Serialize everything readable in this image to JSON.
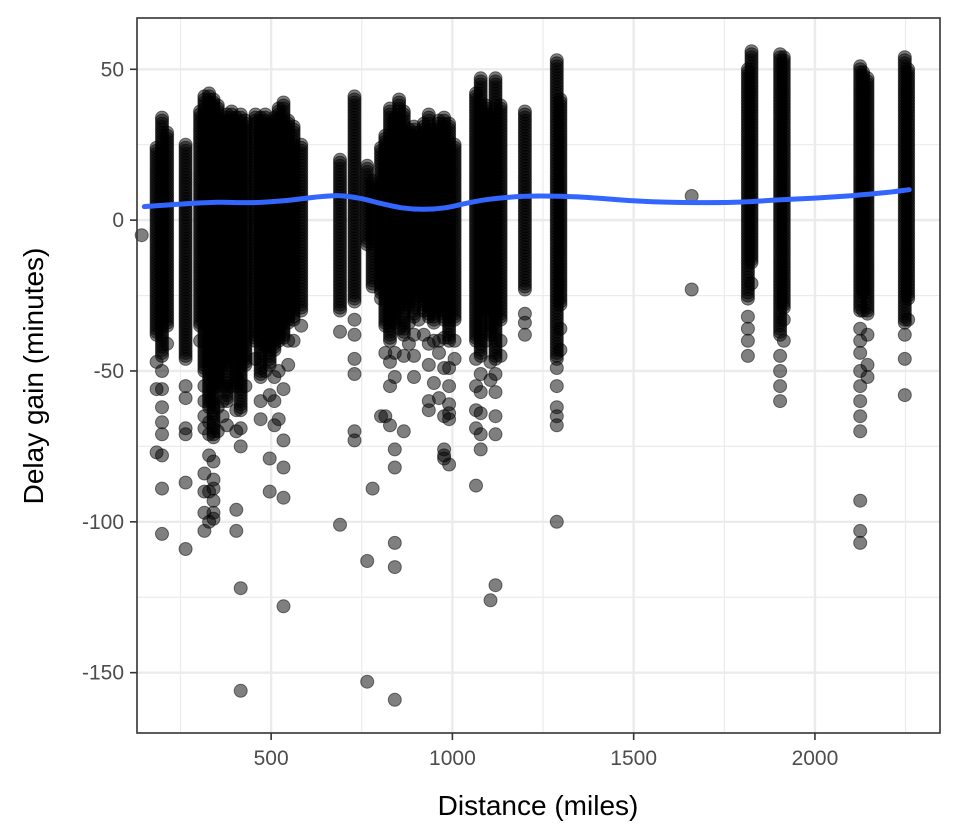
{
  "chart_data": {
    "type": "scatter",
    "title": "",
    "xlabel": "Distance (miles)",
    "ylabel": "Delay gain (minutes)",
    "xlim": [
      130,
      2345
    ],
    "ylim": [
      -170,
      67
    ],
    "x_ticks": [
      500,
      1000,
      1500,
      2000
    ],
    "y_ticks": [
      50,
      0,
      -50,
      -100,
      -150
    ],
    "x_tick_labels": [
      "500",
      "1000",
      "1500",
      "2000"
    ],
    "y_tick_labels": [
      "50",
      "0",
      "-50",
      "-100",
      "-150"
    ],
    "grid": true,
    "legend": "none",
    "colors": {
      "points": "#000000",
      "smooth": "#3366ff",
      "grid": "#ebebeb",
      "border": "#333333"
    },
    "series": [
      {
        "type": "scatter",
        "columns": [
          {
            "x": 184,
            "min": -38,
            "max": 24,
            "outliers": [
              -47,
              -56,
              -77
            ]
          },
          {
            "x": 199,
            "min": -45,
            "max": 34,
            "outliers": [
              -50,
              -56,
              -62,
              -67,
              -71,
              -78,
              -89,
              -104
            ]
          },
          {
            "x": 213,
            "min": -35,
            "max": 29,
            "outliers": [
              -41
            ]
          },
          {
            "x": 264,
            "min": -46,
            "max": 25,
            "outliers": [
              -55,
              -59,
              -69,
              -71,
              -87,
              -109
            ]
          },
          {
            "x": 304,
            "min": -35,
            "max": 36,
            "outliers": [
              -40
            ]
          },
          {
            "x": 316,
            "min": -50,
            "max": 41,
            "outliers": [
              -55,
              -60,
              -65,
              -69,
              -84,
              -90,
              -97,
              -103
            ]
          },
          {
            "x": 329,
            "min": -62,
            "max": 42,
            "outliers": [
              -67,
              -71,
              -78,
              -90,
              -100
            ]
          },
          {
            "x": 341,
            "min": -72,
            "max": 40,
            "outliers": [
              -80,
              -86,
              -89,
              -93,
              -97,
              -99
            ]
          },
          {
            "x": 353,
            "min": -55,
            "max": 38,
            "outliers": [
              -62,
              -70
            ]
          },
          {
            "x": 366,
            "min": -48,
            "max": 33,
            "outliers": [
              -55,
              -60,
              -65
            ]
          },
          {
            "x": 378,
            "min": -60,
            "max": 35,
            "outliers": [
              -68
            ]
          },
          {
            "x": 391,
            "min": -45,
            "max": 36,
            "outliers": [
              -55
            ]
          },
          {
            "x": 404,
            "min": -55,
            "max": 34,
            "outliers": [
              -63,
              -70,
              -96,
              -103
            ]
          },
          {
            "x": 416,
            "min": -63,
            "max": 35,
            "outliers": [
              -69,
              -75,
              -122,
              -156
            ]
          },
          {
            "x": 429,
            "min": -48,
            "max": 33,
            "outliers": [
              -55
            ]
          },
          {
            "x": 457,
            "min": -40,
            "max": 35,
            "outliers": [
              -46
            ]
          },
          {
            "x": 471,
            "min": -52,
            "max": 34,
            "outliers": [
              -60,
              -66
            ]
          },
          {
            "x": 484,
            "min": -42,
            "max": 35,
            "outliers": [
              -50
            ]
          },
          {
            "x": 496,
            "min": -48,
            "max": 32,
            "outliers": [
              -58,
              -79,
              -90
            ]
          },
          {
            "x": 509,
            "min": -43,
            "max": 34,
            "outliers": [
              -52,
              -60,
              -68
            ]
          },
          {
            "x": 521,
            "min": -40,
            "max": 37,
            "outliers": [
              -50,
              -66
            ]
          },
          {
            "x": 534,
            "min": -39,
            "max": 39,
            "outliers": [
              -56,
              -73,
              -82,
              -92,
              -128
            ]
          },
          {
            "x": 547,
            "min": -34,
            "max": 33,
            "outliers": [
              -40,
              -48
            ]
          },
          {
            "x": 562,
            "min": -33,
            "max": 31,
            "outliers": [
              -40
            ]
          },
          {
            "x": 583,
            "min": -30,
            "max": 25,
            "outliers": [
              -35
            ]
          },
          {
            "x": 690,
            "min": -30,
            "max": 20,
            "outliers": [
              -37,
              -101
            ]
          },
          {
            "x": 730,
            "min": -27,
            "max": 41,
            "outliers": [
              -33,
              -38,
              -46,
              -51,
              -70,
              -73
            ]
          },
          {
            "x": 765,
            "min": -8,
            "max": 18,
            "outliers": [
              -113,
              -153
            ]
          },
          {
            "x": 780,
            "min": -22,
            "max": 13,
            "outliers": [
              -89
            ]
          },
          {
            "x": 803,
            "min": -24,
            "max": 24,
            "outliers": [
              -26,
              -65
            ]
          },
          {
            "x": 815,
            "min": -35,
            "max": 28,
            "outliers": [
              -44,
              -65
            ]
          },
          {
            "x": 828,
            "min": -40,
            "max": 37,
            "outliers": [
              -47,
              -55,
              -68
            ]
          },
          {
            "x": 841,
            "min": -34,
            "max": 34,
            "outliers": [
              -44,
              -52,
              -76,
              -82,
              -107,
              -115,
              -159
            ]
          },
          {
            "x": 853,
            "min": -29,
            "max": 40,
            "outliers": [
              -36
            ]
          },
          {
            "x": 866,
            "min": -38,
            "max": 36,
            "outliers": [
              -45,
              -70
            ]
          },
          {
            "x": 880,
            "min": -28,
            "max": 30,
            "outliers": [
              -34,
              -41
            ]
          },
          {
            "x": 894,
            "min": -32,
            "max": 31,
            "outliers": [
              -38,
              -45,
              -52
            ]
          },
          {
            "x": 907,
            "min": -25,
            "max": 29,
            "outliers": [
              -33
            ]
          },
          {
            "x": 921,
            "min": -30,
            "max": 32,
            "outliers": [
              -38
            ]
          },
          {
            "x": 935,
            "min": -32,
            "max": 35,
            "outliers": [
              -41,
              -48,
              -60,
              -63
            ]
          },
          {
            "x": 949,
            "min": -34,
            "max": 30,
            "outliers": [
              -40,
              -54
            ]
          },
          {
            "x": 963,
            "min": -30,
            "max": 33,
            "outliers": [
              -40,
              -44,
              -59
            ]
          },
          {
            "x": 977,
            "min": -33,
            "max": 34,
            "outliers": [
              -39,
              -49,
              -65,
              -76,
              -78,
              -79
            ]
          },
          {
            "x": 991,
            "min": -40,
            "max": 32,
            "outliers": [
              -49,
              -55,
              -61,
              -64,
              -66,
              -81
            ]
          },
          {
            "x": 1006,
            "min": -33,
            "max": 25,
            "outliers": [
              -40,
              -46
            ]
          },
          {
            "x": 1065,
            "min": -40,
            "max": 42,
            "outliers": [
              -46,
              -55,
              -63,
              -69,
              -88
            ]
          },
          {
            "x": 1078,
            "min": -45,
            "max": 47,
            "outliers": [
              -51,
              -57,
              -64,
              -71,
              -76
            ]
          },
          {
            "x": 1092,
            "min": -30,
            "max": 38,
            "outliers": [
              -40
            ]
          },
          {
            "x": 1105,
            "min": -38,
            "max": 35,
            "outliers": [
              -47,
              -53,
              -126
            ]
          },
          {
            "x": 1119,
            "min": -46,
            "max": 47,
            "outliers": [
              -51,
              -57,
              -65,
              -71,
              -121
            ]
          },
          {
            "x": 1133,
            "min": -33,
            "max": 38,
            "outliers": [
              -40,
              -45
            ]
          },
          {
            "x": 1200,
            "min": -23,
            "max": 36,
            "outliers": [
              -31,
              -34,
              -38
            ]
          },
          {
            "x": 1288,
            "min": -46,
            "max": 53,
            "outliers": [
              -49,
              -55,
              -62,
              -65,
              -68,
              -100
            ]
          },
          {
            "x": 1298,
            "min": -28,
            "max": 40,
            "outliers": [
              -36,
              -43
            ]
          },
          {
            "x": 1815,
            "min": -26,
            "max": 50,
            "outliers": [
              -32,
              -36,
              -40,
              -45
            ]
          },
          {
            "x": 1825,
            "min": -14,
            "max": 56,
            "outliers": [
              -21
            ]
          },
          {
            "x": 1904,
            "min": -38,
            "max": 55,
            "outliers": [
              -45,
              -50,
              -55,
              -60
            ]
          },
          {
            "x": 1914,
            "min": -29,
            "max": 54,
            "outliers": [
              -33,
              -40
            ]
          },
          {
            "x": 2125,
            "min": -30,
            "max": 51,
            "outliers": [
              -36,
              -40,
              -44,
              -50,
              -55,
              -60,
              -65,
              -70,
              -93,
              -103,
              -107
            ]
          },
          {
            "x": 2133,
            "min": -24,
            "max": 49,
            "outliers": [
              -30
            ]
          },
          {
            "x": 2145,
            "min": -31,
            "max": 47,
            "outliers": [
              -38,
              -48,
              -52
            ]
          },
          {
            "x": 2248,
            "min": -34,
            "max": 54,
            "outliers": [
              -38,
              -46,
              -58
            ]
          },
          {
            "x": 2257,
            "min": -26,
            "max": 50,
            "outliers": [
              -33
            ]
          }
        ],
        "points": [
          {
            "x": 143,
            "y": -5
          },
          {
            "x": 1660,
            "y": 8
          },
          {
            "x": 1660,
            "y": -23
          }
        ]
      },
      {
        "type": "line",
        "x": [
          150,
          250,
          350,
          450,
          550,
          620,
          690,
          750,
          800,
          860,
          920,
          980,
          1040,
          1100,
          1200,
          1300,
          1400,
          1500,
          1600,
          1700,
          1800,
          1900,
          2000,
          2100,
          2200,
          2260
        ],
        "y": [
          4.5,
          5.3,
          5.9,
          5.8,
          6.6,
          7.6,
          8.1,
          7.1,
          5.6,
          4.1,
          3.6,
          4.1,
          5.6,
          6.9,
          7.9,
          7.9,
          7.3,
          6.4,
          5.9,
          5.8,
          6.0,
          6.7,
          7.3,
          8.1,
          9.2,
          10.1
        ]
      }
    ]
  }
}
